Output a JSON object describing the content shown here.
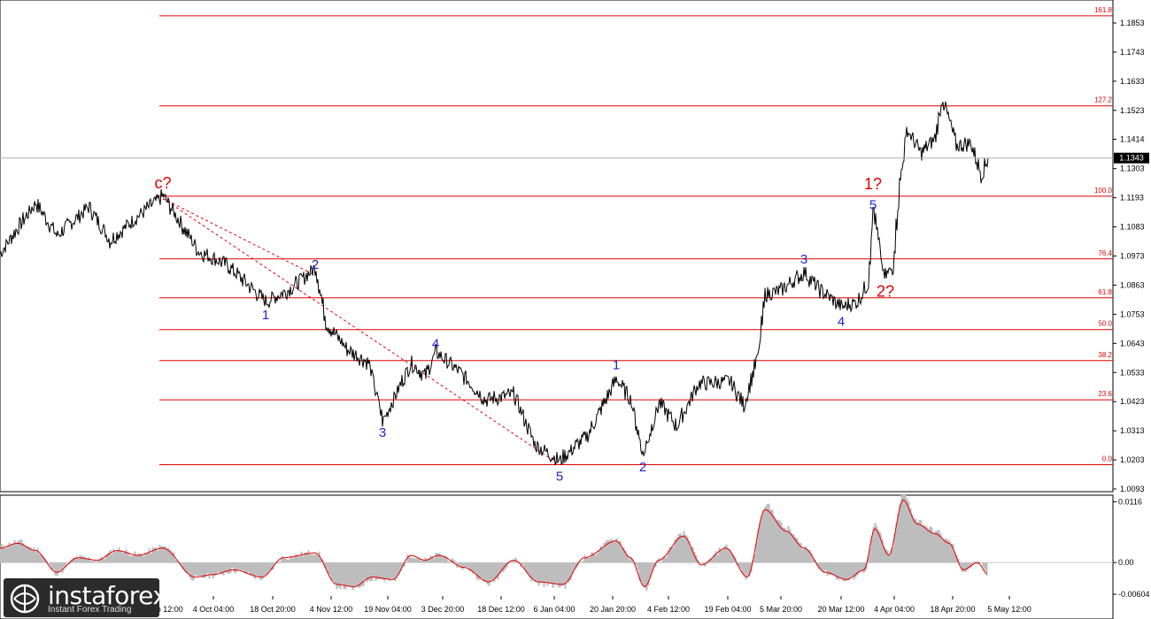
{
  "chart_data": [
    {
      "type": "line",
      "title": "",
      "ylim": [
        1.0093,
        1.1853
      ],
      "y_ticks": [
        "1.1853",
        "1.1743",
        "1.1633",
        "1.1523",
        "1.1414",
        "1.1303",
        "1.1193",
        "1.1083",
        "1.0973",
        "1.0863",
        "1.0753",
        "1.0643",
        "1.0533",
        "1.0423",
        "1.0313",
        "1.0203",
        "1.0093"
      ],
      "x_ticks": [
        "19 Sep 12:00",
        "4 Oct 04:00",
        "18 Oct 20:00",
        "4 Nov 12:00",
        "19 Nov 04:00",
        "3 Dec 20:00",
        "18 Dec 12:00",
        "6 Jan 04:00",
        "20 Jan 20:00",
        "4 Feb 12:00",
        "19 Feb 04:00",
        "5 Mar 20:00",
        "20 Mar 12:00",
        "4 Apr 04:00",
        "18 Apr 20:00",
        "5 May 12:00"
      ],
      "current_price": "1.1343",
      "fib_levels": [
        {
          "label": "0.0",
          "price": 1.0185
        },
        {
          "label": "23.6",
          "price": 1.043
        },
        {
          "label": "38.2",
          "price": 1.0578
        },
        {
          "label": "50.0",
          "price": 1.0695
        },
        {
          "label": "61.8",
          "price": 1.0815
        },
        {
          "label": "76.4",
          "price": 1.0962
        },
        {
          "label": "100.0",
          "price": 1.1199
        },
        {
          "label": "127.2",
          "price": 1.154
        },
        {
          "label": "161.8",
          "price": 1.188
        }
      ],
      "wave_labels": [
        {
          "text": "c?",
          "color": "#e00000",
          "x_index": 92,
          "price": 1.1228
        },
        {
          "text": "1",
          "color": "#2222cc",
          "x_index": 150,
          "price": 1.0735
        },
        {
          "text": "2",
          "color": "#2222cc",
          "x_index": 178,
          "price": 1.0925
        },
        {
          "text": "3",
          "color": "#2222cc",
          "x_index": 216,
          "price": 1.029
        },
        {
          "text": "4",
          "color": "#2222cc",
          "x_index": 246,
          "price": 1.0625
        },
        {
          "text": "5",
          "color": "#2222cc",
          "x_index": 316,
          "price": 1.0125
        },
        {
          "text": "1",
          "color": "#2222cc",
          "x_index": 348,
          "price": 1.0545
        },
        {
          "text": "2",
          "color": "#2222cc",
          "x_index": 363,
          "price": 1.016
        },
        {
          "text": "3",
          "color": "#2222cc",
          "x_index": 454,
          "price": 1.0945
        },
        {
          "text": "4",
          "color": "#2222cc",
          "x_index": 475,
          "price": 1.071
        },
        {
          "text": "5",
          "color": "#2222cc",
          "x_index": 493,
          "price": 1.115
        },
        {
          "text": "1?",
          "color": "#e00000",
          "x_index": 493,
          "price": 1.1225
        },
        {
          "text": "2?",
          "color": "#e00000",
          "x_index": 500,
          "price": 1.082
        }
      ],
      "pivots": [
        [
          0,
          1.0985
        ],
        [
          20,
          1.1175
        ],
        [
          32,
          1.105
        ],
        [
          50,
          1.116
        ],
        [
          62,
          1.103
        ],
        [
          75,
          1.111
        ],
        [
          92,
          1.12
        ],
        [
          112,
          1.099
        ],
        [
          128,
          1.094
        ],
        [
          150,
          1.08
        ],
        [
          164,
          1.085
        ],
        [
          178,
          1.093
        ],
        [
          184,
          1.072
        ],
        [
          196,
          1.062
        ],
        [
          208,
          1.057
        ],
        [
          216,
          1.035
        ],
        [
          232,
          1.057
        ],
        [
          240,
          1.052
        ],
        [
          246,
          1.061
        ],
        [
          260,
          1.053
        ],
        [
          274,
          1.043
        ],
        [
          290,
          1.045
        ],
        [
          302,
          1.026
        ],
        [
          316,
          1.02
        ],
        [
          332,
          1.03
        ],
        [
          348,
          1.051
        ],
        [
          356,
          1.043
        ],
        [
          363,
          1.022
        ],
        [
          372,
          1.042
        ],
        [
          382,
          1.033
        ],
        [
          394,
          1.049
        ],
        [
          412,
          1.05
        ],
        [
          420,
          1.041
        ],
        [
          428,
          1.06
        ],
        [
          432,
          1.083
        ],
        [
          440,
          1.084
        ],
        [
          454,
          1.091
        ],
        [
          462,
          1.085
        ],
        [
          475,
          1.078
        ],
        [
          484,
          1.08
        ],
        [
          490,
          1.087
        ],
        [
          493,
          1.1155
        ],
        [
          499,
          1.089
        ],
        [
          504,
          1.093
        ],
        [
          508,
          1.125
        ],
        [
          512,
          1.145
        ],
        [
          520,
          1.136
        ],
        [
          528,
          1.142
        ],
        [
          532,
          1.157
        ],
        [
          540,
          1.139
        ],
        [
          548,
          1.14
        ],
        [
          554,
          1.128
        ],
        [
          558,
          1.1343
        ]
      ],
      "fan_lines": [
        {
          "from": [
            92,
            1.119
          ],
          "to": [
            316,
            1.0185
          ]
        },
        {
          "from": [
            92,
            1.119
          ],
          "to": [
            178,
            1.09
          ]
        }
      ]
    },
    {
      "type": "area",
      "title": "",
      "ylim": [
        -0.00604,
        0.01167
      ],
      "y_ticks": [
        "0.0116",
        "0.00",
        "-0.00604"
      ],
      "values_note": "",
      "pivots": [
        [
          0,
          0.003
        ],
        [
          10,
          0.004
        ],
        [
          20,
          0.0025
        ],
        [
          32,
          -0.002
        ],
        [
          44,
          0.001
        ],
        [
          55,
          0.0005
        ],
        [
          66,
          0.0025
        ],
        [
          78,
          0.0015
        ],
        [
          92,
          0.003
        ],
        [
          110,
          -0.003
        ],
        [
          120,
          -0.0025
        ],
        [
          132,
          -0.0015
        ],
        [
          148,
          -0.003
        ],
        [
          160,
          0.001
        ],
        [
          178,
          0.002
        ],
        [
          190,
          -0.0045
        ],
        [
          200,
          -0.005
        ],
        [
          210,
          -0.003
        ],
        [
          222,
          -0.0035
        ],
        [
          232,
          0.0015
        ],
        [
          240,
          0.0005
        ],
        [
          248,
          0.0015
        ],
        [
          262,
          -0.001
        ],
        [
          276,
          -0.004
        ],
        [
          290,
          0.0005
        ],
        [
          304,
          -0.004
        ],
        [
          318,
          -0.0045
        ],
        [
          330,
          0.001
        ],
        [
          348,
          0.0045
        ],
        [
          356,
          0.001
        ],
        [
          364,
          -0.005
        ],
        [
          372,
          0.0005
        ],
        [
          386,
          0.0055
        ],
        [
          396,
          -0.0005
        ],
        [
          410,
          0.003
        ],
        [
          422,
          -0.003
        ],
        [
          432,
          0.011
        ],
        [
          444,
          0.0065
        ],
        [
          454,
          0.003
        ],
        [
          466,
          -0.002
        ],
        [
          478,
          -0.0035
        ],
        [
          488,
          -0.0015
        ],
        [
          494,
          0.007
        ],
        [
          502,
          0.0015
        ],
        [
          510,
          0.013
        ],
        [
          518,
          0.008
        ],
        [
          528,
          0.006
        ],
        [
          536,
          0.004
        ],
        [
          544,
          -0.0015
        ],
        [
          552,
          0.0
        ],
        [
          558,
          -0.0025
        ]
      ]
    }
  ],
  "branding": {
    "logo_name": "instaforex",
    "logo_tagline": "Instant Forex Trading"
  },
  "colors": {
    "fib_line": "#e00000",
    "price_line": "#000000",
    "osc_fill": "#bdbdbd",
    "osc_line": "#e00000",
    "wave_red": "#e00000",
    "wave_blue": "#2222cc"
  }
}
